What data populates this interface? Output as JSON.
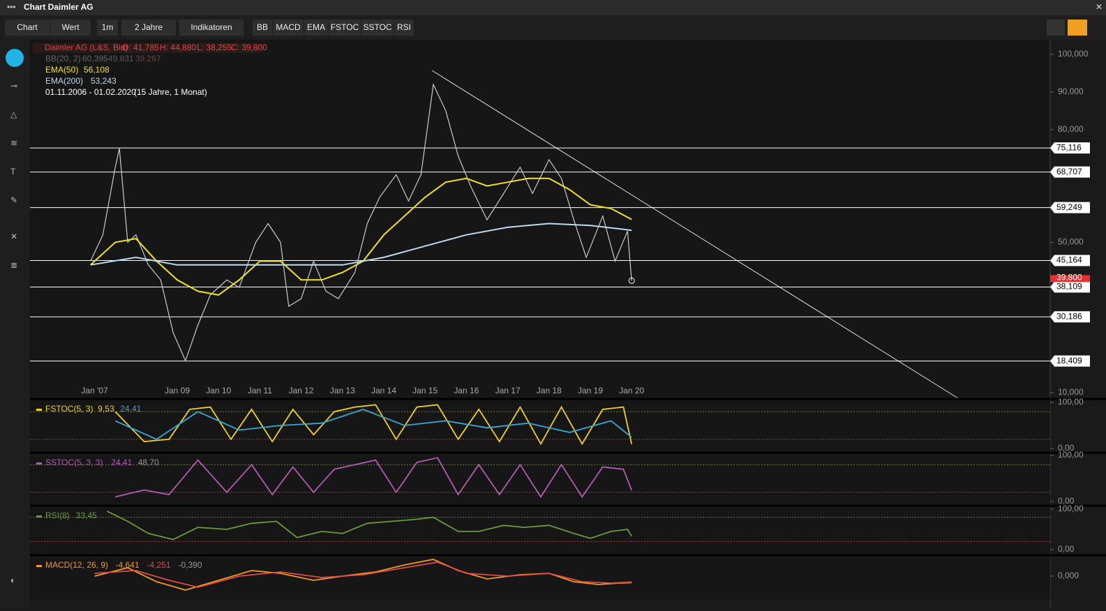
{
  "window": {
    "title": "Chart Daimler AG"
  },
  "toolbar": {
    "buttons": [
      "Chart",
      "Wert",
      "1m",
      "2 Jahre",
      "Indikatoren",
      "BB",
      "MACD",
      "EMA",
      "FSTOC",
      "SSTOC",
      "RSI"
    ]
  },
  "chart": {
    "legend": {
      "instrument": "Daimler AG (L&S, Bid)",
      "ohlc": [
        "O: 41,785",
        "H: 44,880",
        "L: 38,255",
        "C: 39,800"
      ],
      "bb": [
        "BB(20, 2)",
        "60,395",
        "49,831",
        "39,267"
      ],
      "ema50": [
        "EMA(50)",
        "56,108"
      ],
      "ema200": [
        "EMA(200)",
        "53,243"
      ],
      "period": "01.11.2006 - 01.02.2020",
      "period_note": "(15 Jahre, 1 Monat)"
    },
    "ylim": [
      10,
      100
    ],
    "yticks": [
      {
        "value": 100,
        "label": "100,000"
      },
      {
        "value": 90,
        "label": "90,000"
      },
      {
        "value": 80,
        "label": "80,000"
      },
      {
        "value": 50,
        "label": "50,000"
      },
      {
        "value": 10,
        "label": "10,000"
      }
    ],
    "levels": [
      {
        "value": 75.116,
        "label": "75,116"
      },
      {
        "value": 68.707,
        "label": "68,707"
      },
      {
        "value": 59.249,
        "label": "59,249"
      },
      {
        "value": 45.164,
        "label": "45,164"
      },
      {
        "value": 38.109,
        "label": "38,109"
      },
      {
        "value": 30.186,
        "label": "30,186"
      },
      {
        "value": 18.409,
        "label": "18,409"
      }
    ],
    "xticks": [
      {
        "value": 2007,
        "label": "Jan '07"
      },
      {
        "value": 2009,
        "label": "Jan 09"
      },
      {
        "value": 2010,
        "label": "Jan 10"
      },
      {
        "value": 2011,
        "label": "Jan 11"
      },
      {
        "value": 2012,
        "label": "Jan 12"
      },
      {
        "value": 2013,
        "label": "Jan 13"
      },
      {
        "value": 2014,
        "label": "Jan 14"
      },
      {
        "value": 2015,
        "label": "Jan 15"
      },
      {
        "value": 2016,
        "label": "Jan 16"
      },
      {
        "value": 2017,
        "label": "Jan 17"
      },
      {
        "value": 2018,
        "label": "Jan 18"
      },
      {
        "value": 2019,
        "label": "Jan 19"
      },
      {
        "value": 2020,
        "label": "Jan 20"
      }
    ],
    "series": [
      {
        "name": "price",
        "color": "#cccccc",
        "x": [
          2006.9,
          2007.2,
          2007.5,
          2007.6,
          2007.8,
          2008.0,
          2008.3,
          2008.6,
          2008.9,
          2009.2,
          2009.5,
          2009.8,
          2010.2,
          2010.5,
          2010.9,
          2011.2,
          2011.5,
          2011.7,
          2012.0,
          2012.3,
          2012.6,
          2012.9,
          2013.3,
          2013.6,
          2013.9,
          2014.3,
          2014.6,
          2014.9,
          2015.2,
          2015.5,
          2015.8,
          2016.1,
          2016.5,
          2016.9,
          2017.3,
          2017.6,
          2018.0,
          2018.3,
          2018.6,
          2018.9,
          2019.3,
          2019.6,
          2019.9,
          2020.0
        ],
        "values": [
          45,
          52,
          70,
          75,
          50,
          52,
          44,
          40,
          26,
          18.5,
          28,
          36,
          40,
          38,
          50,
          55,
          50,
          33,
          35,
          45,
          37,
          35,
          42,
          55,
          62,
          68,
          61,
          68,
          92,
          85,
          73,
          65,
          56,
          63,
          70,
          63,
          72,
          67,
          56,
          46,
          57,
          45,
          53,
          39.8
        ]
      },
      {
        "name": "EMA(50)",
        "color": "#f2e21b",
        "x": [
          2006.9,
          2007.5,
          2008.0,
          2008.5,
          2009.0,
          2009.5,
          2010.0,
          2010.5,
          2011.0,
          2011.5,
          2012.0,
          2012.5,
          2013.0,
          2013.5,
          2014.0,
          2014.5,
          2015.0,
          2015.5,
          2016.0,
          2016.5,
          2017.0,
          2017.5,
          2018.0,
          2018.5,
          2019.0,
          2019.5,
          2020.0
        ],
        "values": [
          44,
          50,
          51,
          45,
          40,
          37,
          36,
          40,
          45,
          45,
          40,
          40,
          42,
          45,
          52,
          57,
          62,
          66,
          67,
          65,
          66,
          67,
          67,
          64,
          60,
          59,
          56.1
        ]
      },
      {
        "name": "EMA(200)",
        "color": "#b9dcf0",
        "x": [
          2006.9,
          2008.0,
          2009.0,
          2010.0,
          2011.0,
          2012.0,
          2013.0,
          2014.0,
          2015.0,
          2016.0,
          2017.0,
          2018.0,
          2019.0,
          2020.0
        ],
        "values": [
          44,
          46,
          44,
          44,
          44,
          44,
          44,
          46,
          49,
          52,
          54,
          55,
          54.5,
          53.2
        ]
      }
    ],
    "last_price": {
      "value": 39.8,
      "label": "39,800"
    }
  },
  "indicators": [
    {
      "name": "FSTOC(5, 3)",
      "readings": [
        "9,53",
        "24,41"
      ],
      "ticks": [
        {
          "value": 100,
          "label": "100,00"
        },
        {
          "value": 0,
          "label": "0,00"
        }
      ],
      "series": [
        {
          "color": "#f2d21b",
          "x": [
            2007.5,
            2008.2,
            2008.8,
            2009.3,
            2009.8,
            2010.3,
            2010.8,
            2011.3,
            2011.8,
            2012.3,
            2012.8,
            2013.3,
            2013.8,
            2014.3,
            2014.8,
            2015.3,
            2015.8,
            2016.3,
            2016.8,
            2017.3,
            2017.8,
            2018.3,
            2018.8,
            2019.3,
            2019.8,
            2020.0
          ],
          "values": [
            80,
            15,
            20,
            85,
            90,
            20,
            85,
            15,
            85,
            30,
            80,
            90,
            95,
            20,
            90,
            95,
            20,
            85,
            15,
            90,
            10,
            90,
            10,
            85,
            90,
            9.53
          ]
        },
        {
          "color": "#3aa7d4",
          "x": [
            2007.5,
            2008.5,
            2009.5,
            2010.5,
            2011.5,
            2012.5,
            2013.5,
            2014.5,
            2015.5,
            2016.5,
            2017.5,
            2018.5,
            2019.5,
            2020.0
          ],
          "values": [
            60,
            20,
            80,
            40,
            50,
            55,
            85,
            50,
            60,
            45,
            55,
            35,
            60,
            24.41
          ]
        }
      ]
    },
    {
      "name": "SSTOC(5, 3, 3)",
      "readings": [
        "24,41",
        "48,70"
      ],
      "ticks": [
        {
          "value": 100,
          "label": "100,00"
        },
        {
          "value": 0,
          "label": "0,00"
        }
      ],
      "series": [
        {
          "color": "#b45cb4",
          "x": [
            2007.5,
            2008.2,
            2008.8,
            2009.5,
            2010.2,
            2010.8,
            2011.3,
            2011.8,
            2012.3,
            2012.8,
            2013.3,
            2013.8,
            2014.3,
            2014.8,
            2015.3,
            2015.8,
            2016.3,
            2016.8,
            2017.3,
            2017.8,
            2018.3,
            2018.8,
            2019.3,
            2019.8,
            2020.0
          ],
          "values": [
            10,
            25,
            15,
            90,
            20,
            80,
            15,
            75,
            20,
            70,
            80,
            90,
            20,
            85,
            95,
            15,
            80,
            15,
            80,
            10,
            80,
            10,
            75,
            70,
            24.41
          ]
        }
      ]
    },
    {
      "name": "RSI(8)",
      "readings": [
        "33,45"
      ],
      "ticks": [
        {
          "value": 100,
          "label": "100,00"
        },
        {
          "value": 0,
          "label": "0,00"
        }
      ],
      "series": [
        {
          "color": "#6a9a3c",
          "x": [
            2007.3,
            2007.8,
            2008.3,
            2008.9,
            2009.5,
            2010.2,
            2010.8,
            2011.4,
            2011.9,
            2012.5,
            2013.0,
            2013.6,
            2014.2,
            2014.8,
            2015.2,
            2015.8,
            2016.3,
            2016.9,
            2017.4,
            2018.0,
            2018.6,
            2019.0,
            2019.5,
            2019.9,
            2020.0
          ],
          "values": [
            95,
            70,
            40,
            25,
            55,
            50,
            65,
            70,
            30,
            45,
            40,
            65,
            70,
            75,
            80,
            45,
            45,
            60,
            55,
            60,
            40,
            28,
            45,
            50,
            33.45
          ]
        }
      ]
    },
    {
      "name": "MACD(12, 26, 9)",
      "readings": [
        "-4,641",
        "-4,251",
        "-0,390"
      ],
      "ticks": [
        {
          "value": 0,
          "label": "0,000"
        }
      ],
      "series": [
        {
          "color": "#f09a1e",
          "x": [
            2007.0,
            2007.8,
            2008.5,
            2009.2,
            2010.0,
            2010.8,
            2011.5,
            2012.3,
            2013.0,
            2013.8,
            2014.5,
            2015.2,
            2015.8,
            2016.5,
            2017.3,
            2018.0,
            2018.6,
            2019.2,
            2019.7,
            2020.0
          ],
          "values": [
            0,
            6,
            -4,
            -10,
            -3,
            4,
            2,
            -3,
            0,
            3,
            8,
            12,
            4,
            -2,
            1,
            2,
            -4,
            -6,
            -5,
            -4.641
          ]
        },
        {
          "color": "#e04c4c",
          "x": [
            2007.0,
            2008.0,
            2008.8,
            2009.5,
            2010.5,
            2011.5,
            2012.5,
            2013.5,
            2014.5,
            2015.3,
            2016.0,
            2017.0,
            2018.0,
            2018.8,
            2019.5,
            2020.0
          ],
          "values": [
            2,
            4,
            -3,
            -8,
            0,
            3,
            -1,
            1,
            6,
            10,
            2,
            0,
            2,
            -4,
            -5,
            -4.251
          ]
        }
      ]
    }
  ]
}
